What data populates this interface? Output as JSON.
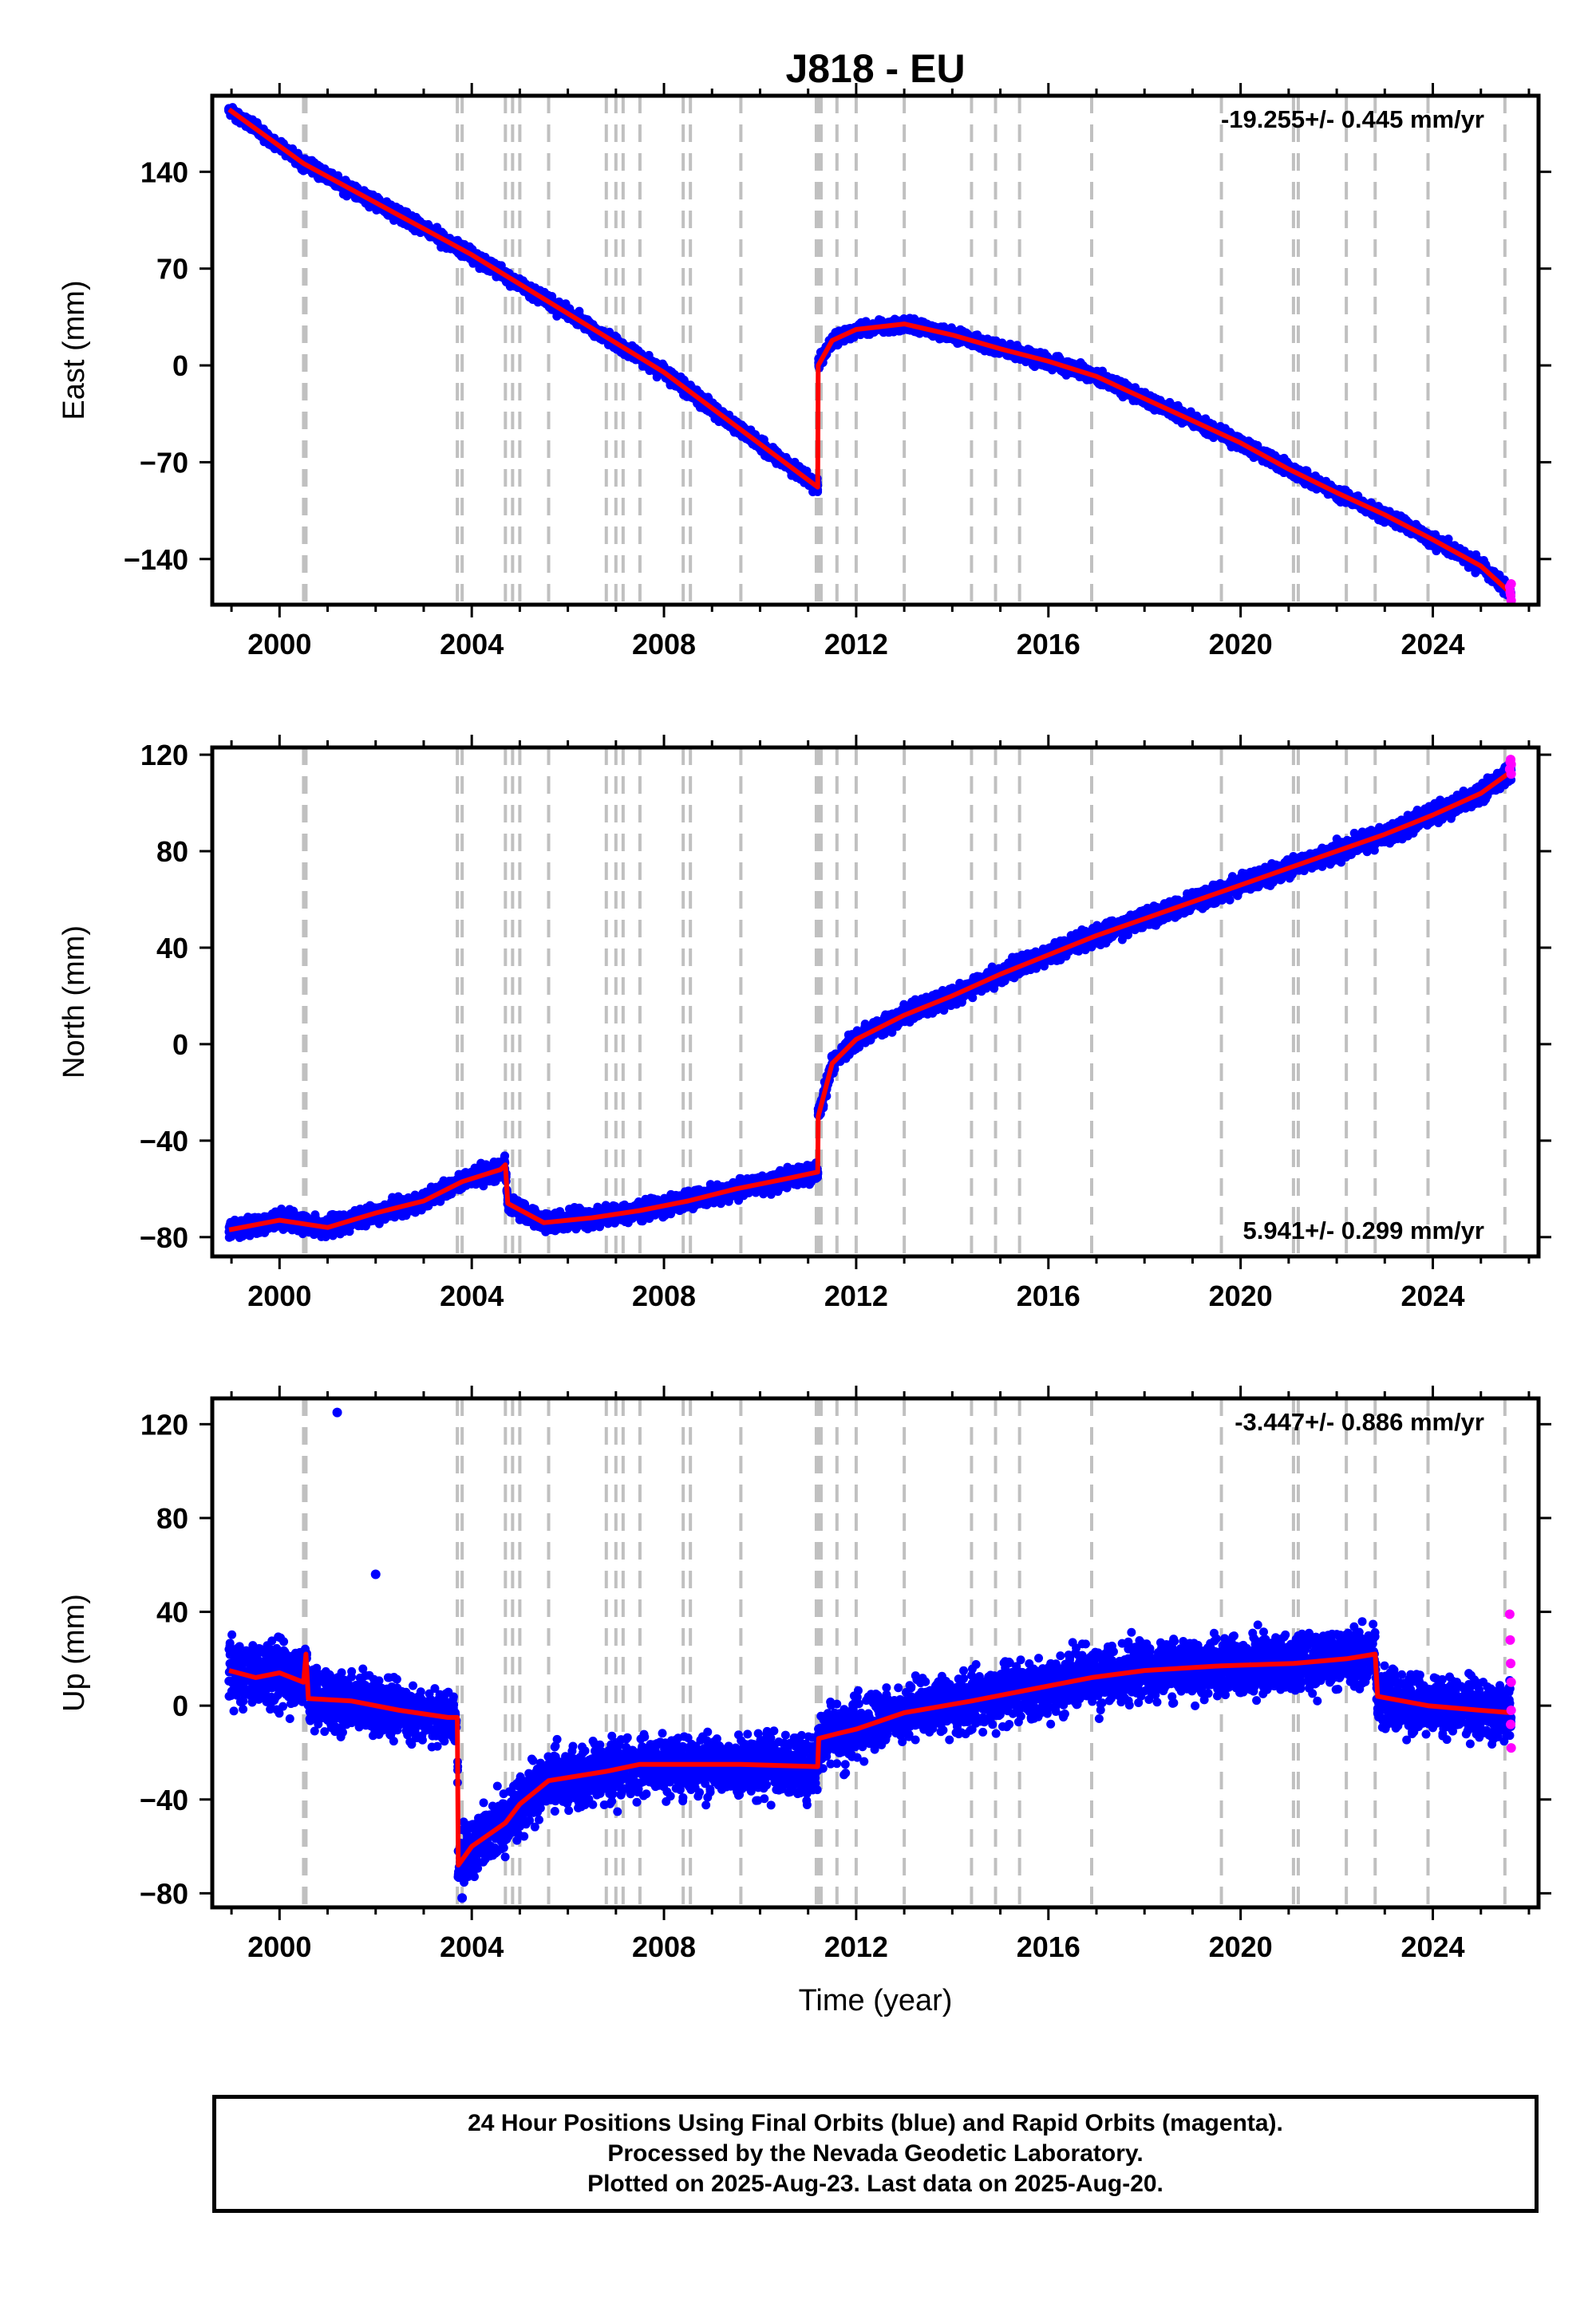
{
  "title": "J818 - EU",
  "xlabel": "Time (year)",
  "footer": {
    "line1": "24 Hour Positions Using Final Orbits (blue) and Rapid Orbits (magenta).",
    "line2": "Processed by the Nevada Geodetic Laboratory.",
    "line3": "Plotted on 2025-Aug-23. Last data on 2025-Aug-20."
  },
  "colors": {
    "final_points": "#0000ff",
    "rapid_points": "#ff00ff",
    "model_line": "#ff0000",
    "event_lines": "#c0c0c0",
    "frame": "#000000"
  },
  "chart_data": [
    {
      "type": "scatter",
      "panel": "east",
      "ylabel": "East (mm)",
      "rate_text": "-19.255+/- 0.445 mm/yr",
      "rate_position": "top-right",
      "xlim": [
        1998.6,
        2026.2
      ],
      "ylim": [
        -173,
        195
      ],
      "xticks": [
        2000,
        2004,
        2008,
        2012,
        2016,
        2020,
        2024
      ],
      "yticks": [
        -140,
        -70,
        0,
        70,
        140
      ],
      "event_lines": [
        2000.5,
        2000.55,
        2003.7,
        2003.8,
        2004.7,
        2004.85,
        2005.0,
        2005.6,
        2006.8,
        2007.0,
        2007.15,
        2007.5,
        2008.4,
        2008.55,
        2009.6,
        2011.17,
        2011.22,
        2011.27,
        2011.6,
        2012.0,
        2013.0,
        2014.4,
        2014.9,
        2015.4,
        2016.9,
        2019.6,
        2021.1,
        2021.2,
        2022.2,
        2022.8,
        2023.9,
        2025.5
      ],
      "model": [
        [
          1998.95,
          185
        ],
        [
          2000.5,
          146
        ],
        [
          2004.0,
          80
        ],
        [
          2008.0,
          -5
        ],
        [
          2011.2,
          -88
        ],
        [
          2011.21,
          0
        ],
        [
          2011.5,
          18
        ],
        [
          2012.0,
          26
        ],
        [
          2013.0,
          30
        ],
        [
          2014.0,
          22
        ],
        [
          2015.0,
          12
        ],
        [
          2016.0,
          3
        ],
        [
          2017.0,
          -8
        ],
        [
          2018.0,
          -24
        ],
        [
          2019.0,
          -40
        ],
        [
          2020.0,
          -56
        ],
        [
          2021.0,
          -75
        ],
        [
          2022.0,
          -92
        ],
        [
          2023.0,
          -108
        ],
        [
          2024.0,
          -126
        ],
        [
          2025.0,
          -145
        ],
        [
          2025.63,
          -165
        ]
      ],
      "noise": 3.2,
      "outliers": [],
      "rapid": [
        [
          2025.6,
          -160
        ],
        [
          2025.61,
          -164
        ],
        [
          2025.62,
          -166
        ],
        [
          2025.63,
          -170
        ],
        [
          2025.63,
          -158
        ]
      ]
    },
    {
      "type": "scatter",
      "panel": "north",
      "ylabel": "North (mm)",
      "rate_text": "5.941+/- 0.299 mm/yr",
      "rate_position": "bottom-right",
      "xlim": [
        1998.6,
        2026.2
      ],
      "ylim": [
        -88,
        123
      ],
      "xticks": [
        2000,
        2004,
        2008,
        2012,
        2016,
        2020,
        2024
      ],
      "yticks": [
        -80,
        -40,
        0,
        40,
        80,
        120
      ],
      "event_lines": [
        2000.5,
        2000.55,
        2003.7,
        2003.8,
        2004.7,
        2004.85,
        2005.0,
        2005.6,
        2006.8,
        2007.0,
        2007.15,
        2007.5,
        2008.4,
        2008.55,
        2009.6,
        2011.17,
        2011.22,
        2011.27,
        2011.6,
        2012.0,
        2013.0,
        2014.4,
        2014.9,
        2015.4,
        2016.9,
        2019.6,
        2021.1,
        2021.2,
        2022.2,
        2022.8,
        2023.9,
        2025.5
      ],
      "model": [
        [
          1998.95,
          -77
        ],
        [
          2000.0,
          -73
        ],
        [
          2001.0,
          -76
        ],
        [
          2002.0,
          -70
        ],
        [
          2003.0,
          -65
        ],
        [
          2003.8,
          -57
        ],
        [
          2004.6,
          -52
        ],
        [
          2004.7,
          -50
        ],
        [
          2004.75,
          -66
        ],
        [
          2005.5,
          -74
        ],
        [
          2006.5,
          -72
        ],
        [
          2007.5,
          -69
        ],
        [
          2008.5,
          -65
        ],
        [
          2009.5,
          -60
        ],
        [
          2010.5,
          -56
        ],
        [
          2011.2,
          -53
        ],
        [
          2011.21,
          -30
        ],
        [
          2011.5,
          -8
        ],
        [
          2012.0,
          2
        ],
        [
          2013.0,
          12
        ],
        [
          2014.0,
          20
        ],
        [
          2015.0,
          29
        ],
        [
          2016.0,
          37
        ],
        [
          2017.0,
          45
        ],
        [
          2018.0,
          52
        ],
        [
          2019.0,
          59
        ],
        [
          2020.0,
          66
        ],
        [
          2021.0,
          73
        ],
        [
          2022.0,
          80
        ],
        [
          2023.0,
          87
        ],
        [
          2024.0,
          95
        ],
        [
          2025.0,
          104
        ],
        [
          2025.63,
          113
        ]
      ],
      "noise": 2.6,
      "outliers": [],
      "rapid": [
        [
          2025.6,
          114
        ],
        [
          2025.61,
          117
        ],
        [
          2025.62,
          118
        ],
        [
          2025.63,
          116
        ],
        [
          2025.63,
          112
        ]
      ]
    },
    {
      "type": "scatter",
      "panel": "up",
      "ylabel": "Up (mm)",
      "rate_text": "-3.447+/- 0.886 mm/yr",
      "rate_position": "top-right",
      "xlim": [
        1998.6,
        2026.2
      ],
      "ylim": [
        -86,
        131
      ],
      "xticks": [
        2000,
        2004,
        2008,
        2012,
        2016,
        2020,
        2024
      ],
      "yticks": [
        -80,
        -40,
        0,
        40,
        80,
        120
      ],
      "event_lines": [
        2000.5,
        2000.55,
        2003.7,
        2003.8,
        2004.7,
        2004.85,
        2005.0,
        2005.6,
        2006.8,
        2007.0,
        2007.15,
        2007.5,
        2008.4,
        2008.55,
        2009.6,
        2011.17,
        2011.22,
        2011.27,
        2011.6,
        2012.0,
        2013.0,
        2014.4,
        2014.9,
        2015.4,
        2016.9,
        2019.6,
        2021.1,
        2021.2,
        2022.2,
        2022.8,
        2023.9,
        2025.5
      ],
      "model": [
        [
          1998.95,
          15
        ],
        [
          1999.5,
          12
        ],
        [
          2000.0,
          14
        ],
        [
          2000.5,
          10
        ],
        [
          2000.55,
          22
        ],
        [
          2000.6,
          3
        ],
        [
          2001.5,
          2
        ],
        [
          2002.5,
          -2
        ],
        [
          2003.5,
          -5
        ],
        [
          2003.7,
          -5
        ],
        [
          2003.72,
          -68
        ],
        [
          2004.0,
          -60
        ],
        [
          2004.7,
          -50
        ],
        [
          2005.0,
          -42
        ],
        [
          2005.6,
          -32
        ],
        [
          2006.8,
          -28
        ],
        [
          2007.5,
          -25
        ],
        [
          2008.5,
          -25
        ],
        [
          2009.6,
          -25
        ],
        [
          2011.2,
          -26
        ],
        [
          2011.22,
          -14
        ],
        [
          2011.6,
          -12
        ],
        [
          2012.0,
          -10
        ],
        [
          2013.0,
          -3
        ],
        [
          2014.4,
          2
        ],
        [
          2015.4,
          6
        ],
        [
          2016.9,
          12
        ],
        [
          2018.0,
          15
        ],
        [
          2019.6,
          17
        ],
        [
          2021.1,
          18
        ],
        [
          2022.2,
          20
        ],
        [
          2022.8,
          22
        ],
        [
          2022.85,
          4
        ],
        [
          2023.9,
          0
        ],
        [
          2025.0,
          -2
        ],
        [
          2025.63,
          -3
        ]
      ],
      "noise": 8.5,
      "outliers": [
        [
          2001.2,
          125
        ],
        [
          2002.0,
          56
        ],
        [
          2003.8,
          -82
        ]
      ],
      "rapid": [
        [
          2025.6,
          39
        ],
        [
          2025.61,
          28
        ],
        [
          2025.62,
          18
        ],
        [
          2025.63,
          10
        ],
        [
          2025.63,
          -2
        ],
        [
          2025.62,
          -8
        ],
        [
          2025.63,
          -18
        ]
      ]
    }
  ]
}
